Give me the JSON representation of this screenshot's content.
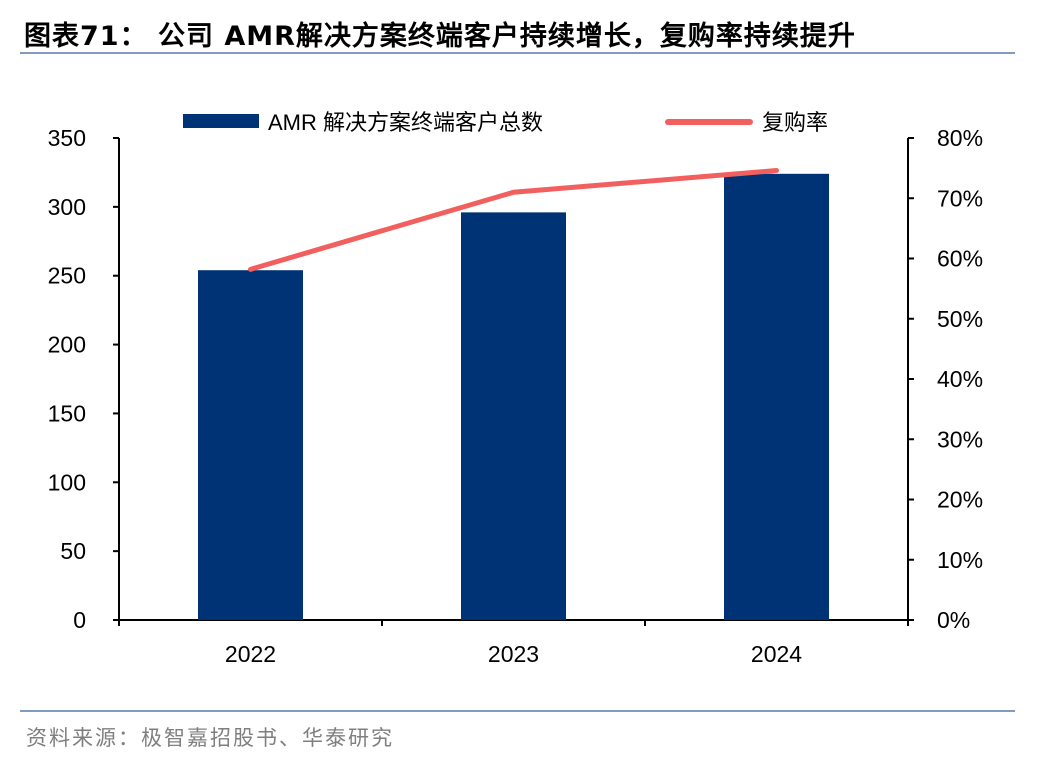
{
  "header": {
    "title": "图表71：  公司 AMR解决方案终端客户持续增长，复购率持续提升"
  },
  "footer": {
    "source": "资料来源：极智嘉招股书、华泰研究"
  },
  "colors": {
    "bar": "#003375",
    "line": "#f1605e",
    "rule": "#7f9cbf",
    "source_text": "#7f7f7f"
  },
  "chart_data": {
    "type": "bar",
    "categories": [
      "2022",
      "2023",
      "2024"
    ],
    "series": [
      {
        "name": "AMR 解决方案终端客户总数",
        "type": "bar",
        "axis": "left",
        "values": [
          254,
          296,
          324
        ]
      },
      {
        "name": "复购率",
        "type": "line",
        "axis": "right",
        "values": [
          58.2,
          71.0,
          74.6
        ]
      }
    ],
    "ylim_left": [
      0,
      350
    ],
    "yticks_left": [
      "0",
      "50",
      "100",
      "150",
      "200",
      "250",
      "300",
      "350"
    ],
    "ylim_right": [
      0,
      80
    ],
    "yticks_right": [
      "0%",
      "10%",
      "20%",
      "30%",
      "40%",
      "50%",
      "60%",
      "70%",
      "80%"
    ],
    "grid": false,
    "legend": "top"
  }
}
